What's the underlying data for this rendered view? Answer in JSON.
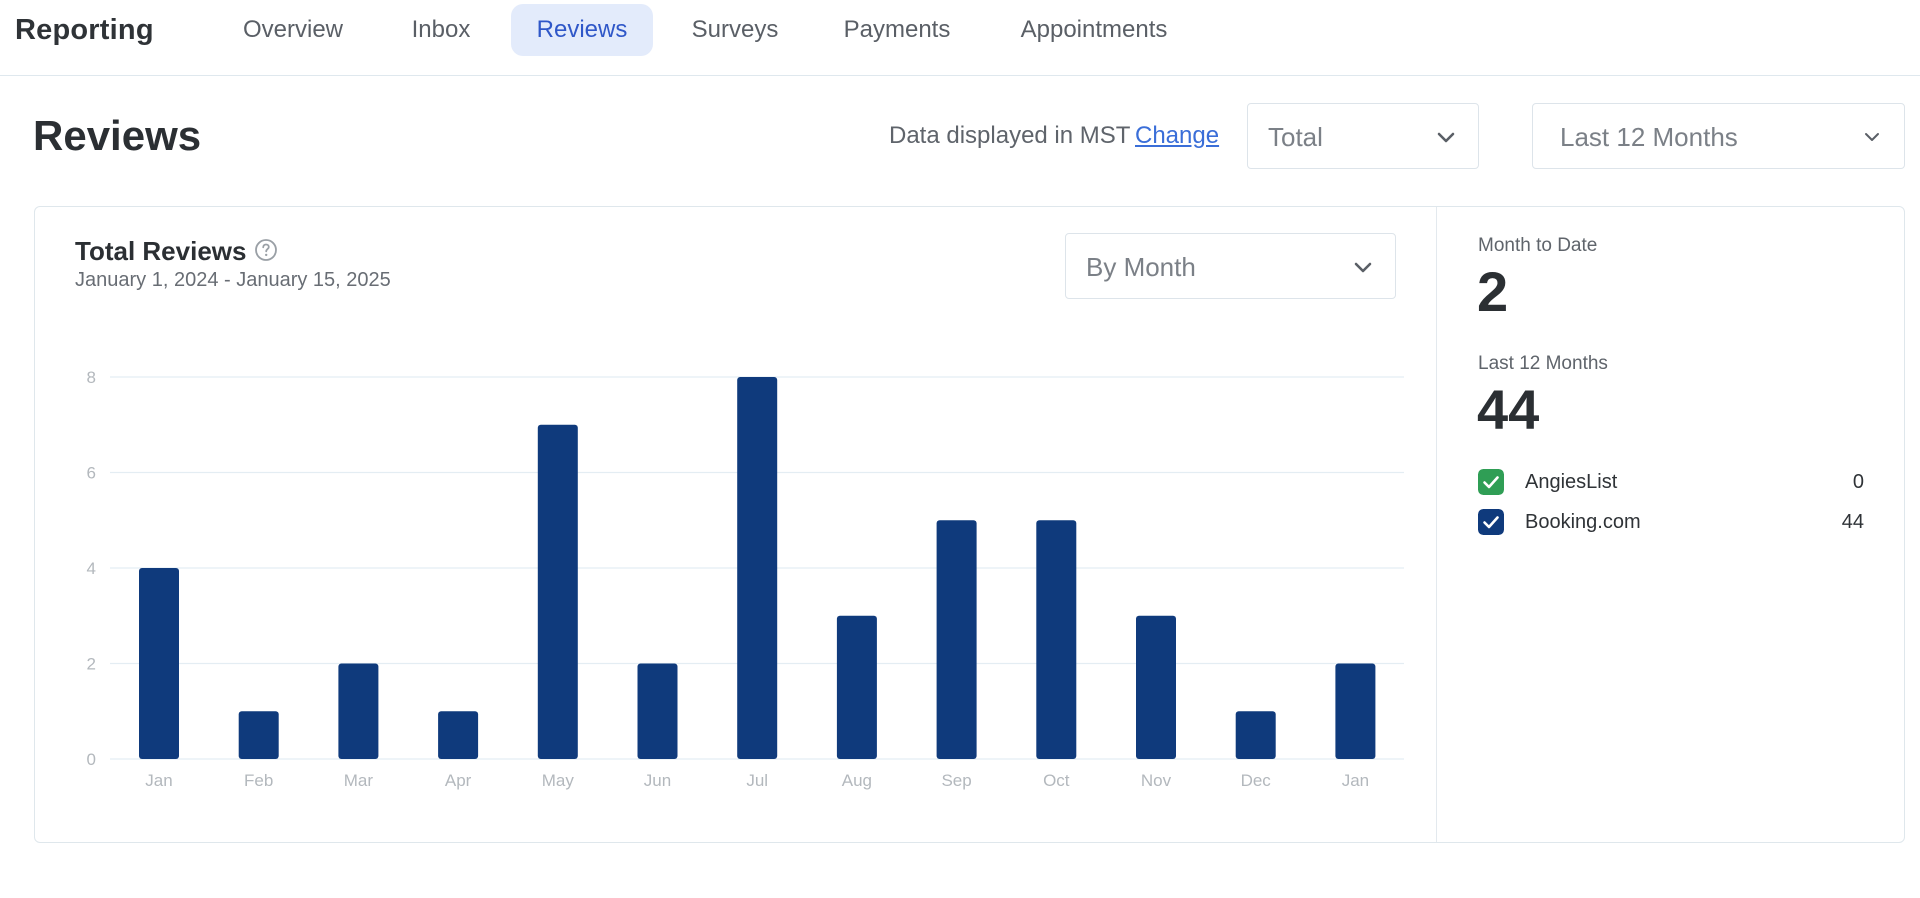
{
  "app": {
    "brand": "Reporting",
    "tabs": [
      {
        "label": "Overview"
      },
      {
        "label": "Inbox"
      },
      {
        "label": "Reviews"
      },
      {
        "label": "Surveys"
      },
      {
        "label": "Payments"
      },
      {
        "label": "Appointments"
      }
    ],
    "active_tab": "Reviews"
  },
  "header": {
    "title": "Reviews",
    "timezone_note": "Data displayed in MST",
    "timezone_change": "Change",
    "metric_select": {
      "value": "Total"
    },
    "period_select": {
      "value": "Last 12 Months"
    }
  },
  "card": {
    "title": "Total Reviews",
    "date_range": "January 1, 2024 - January 15, 2025",
    "grouping_select": {
      "value": "By Month"
    }
  },
  "stats": {
    "month_to_date_label": "Month to Date",
    "month_to_date_value": "2",
    "last_12_label": "Last 12 Months",
    "last_12_value": "44"
  },
  "sources": [
    {
      "name": "AngiesList",
      "count": "0",
      "color": "#2f9e55"
    },
    {
      "name": "Booking.com",
      "count": "44",
      "color": "#0f3a7c"
    }
  ],
  "colors": {
    "bar": "#0f3a7c",
    "accent": "#3a6ed8",
    "active_tab_bg": "#e3ebfb"
  },
  "icons": {
    "help": "question-circle-icon",
    "dropdown": "chevron-down-icon",
    "check": "checkmark-icon"
  },
  "chart_data": {
    "type": "bar",
    "categories": [
      "Jan",
      "Feb",
      "Mar",
      "Apr",
      "May",
      "Jun",
      "Jul",
      "Aug",
      "Sep",
      "Oct",
      "Nov",
      "Dec",
      "Jan"
    ],
    "values": [
      4,
      1,
      2,
      1,
      7,
      2,
      8,
      3,
      5,
      5,
      3,
      1,
      2
    ],
    "y_ticks": [
      0,
      2,
      4,
      6,
      8
    ],
    "ylim": [
      0,
      8
    ],
    "grid": true
  }
}
